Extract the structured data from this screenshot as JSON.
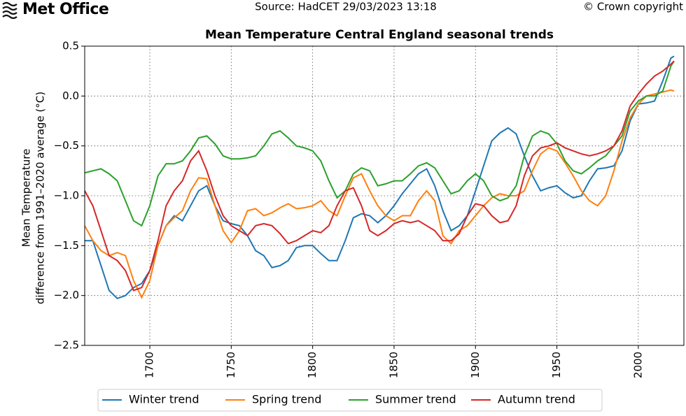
{
  "header": {
    "logo": "Met Office",
    "source": "Source: HadCET 29/03/2023 13:18",
    "copyright": "© Crown copyright"
  },
  "chart_data": {
    "type": "line",
    "title": "Mean Temperature Central England seasonal trends",
    "ylabel": [
      "Mean Temperature",
      "difference from 1991–2020 average (°C)"
    ],
    "x": [
      1660,
      1665,
      1670,
      1675,
      1680,
      1685,
      1690,
      1695,
      1700,
      1705,
      1710,
      1715,
      1720,
      1725,
      1730,
      1735,
      1740,
      1745,
      1750,
      1755,
      1760,
      1765,
      1770,
      1775,
      1780,
      1785,
      1790,
      1795,
      1800,
      1805,
      1810,
      1815,
      1820,
      1825,
      1830,
      1835,
      1840,
      1845,
      1850,
      1855,
      1860,
      1865,
      1870,
      1875,
      1880,
      1885,
      1890,
      1895,
      1900,
      1905,
      1910,
      1915,
      1920,
      1925,
      1930,
      1935,
      1940,
      1945,
      1950,
      1955,
      1960,
      1965,
      1970,
      1975,
      1980,
      1985,
      1990,
      1995,
      2000,
      2005,
      2010,
      2015,
      2020,
      2022
    ],
    "series": [
      {
        "name": "Winter trend",
        "color": "#1f77b4",
        "values": [
          -1.45,
          -1.45,
          -1.7,
          -1.95,
          -2.03,
          -2.0,
          -1.92,
          -1.88,
          -1.75,
          -1.5,
          -1.3,
          -1.2,
          -1.25,
          -1.1,
          -0.95,
          -0.9,
          -1.1,
          -1.25,
          -1.28,
          -1.3,
          -1.4,
          -1.55,
          -1.6,
          -1.72,
          -1.7,
          -1.65,
          -1.52,
          -1.5,
          -1.5,
          -1.58,
          -1.65,
          -1.65,
          -1.45,
          -1.22,
          -1.18,
          -1.2,
          -1.27,
          -1.2,
          -1.1,
          -0.98,
          -0.88,
          -0.78,
          -0.73,
          -0.9,
          -1.15,
          -1.35,
          -1.3,
          -1.2,
          -0.95,
          -0.7,
          -0.45,
          -0.37,
          -0.32,
          -0.38,
          -0.6,
          -0.8,
          -0.95,
          -0.92,
          -0.9,
          -0.97,
          -1.02,
          -1.0,
          -0.85,
          -0.73,
          -0.72,
          -0.7,
          -0.55,
          -0.25,
          -0.08,
          -0.07,
          -0.05,
          0.15,
          0.38,
          0.4
        ]
      },
      {
        "name": "Spring trend",
        "color": "#ff7f0e",
        "values": [
          -1.3,
          -1.45,
          -1.55,
          -1.6,
          -1.57,
          -1.6,
          -1.85,
          -2.02,
          -1.85,
          -1.5,
          -1.3,
          -1.22,
          -1.15,
          -0.95,
          -0.82,
          -0.83,
          -1.1,
          -1.35,
          -1.47,
          -1.35,
          -1.15,
          -1.13,
          -1.2,
          -1.17,
          -1.12,
          -1.08,
          -1.13,
          -1.12,
          -1.1,
          -1.05,
          -1.15,
          -1.2,
          -1.0,
          -0.82,
          -0.78,
          -0.95,
          -1.1,
          -1.2,
          -1.25,
          -1.2,
          -1.2,
          -1.05,
          -0.95,
          -1.05,
          -1.4,
          -1.48,
          -1.35,
          -1.3,
          -1.2,
          -1.1,
          -1.02,
          -0.98,
          -1.0,
          -1.0,
          -0.95,
          -0.75,
          -0.58,
          -0.52,
          -0.55,
          -0.67,
          -0.8,
          -0.95,
          -1.05,
          -1.1,
          -1.0,
          -0.75,
          -0.45,
          -0.22,
          -0.08,
          0.0,
          0.02,
          0.04,
          0.06,
          0.05
        ]
      },
      {
        "name": "Summer trend",
        "color": "#2ca02c",
        "values": [
          -0.77,
          -0.75,
          -0.73,
          -0.78,
          -0.85,
          -1.05,
          -1.25,
          -1.3,
          -1.1,
          -0.8,
          -0.68,
          -0.68,
          -0.65,
          -0.55,
          -0.42,
          -0.4,
          -0.48,
          -0.6,
          -0.63,
          -0.63,
          -0.62,
          -0.6,
          -0.5,
          -0.38,
          -0.35,
          -0.42,
          -0.5,
          -0.52,
          -0.55,
          -0.65,
          -0.85,
          -1.02,
          -0.95,
          -0.78,
          -0.72,
          -0.75,
          -0.9,
          -0.88,
          -0.85,
          -0.85,
          -0.78,
          -0.7,
          -0.67,
          -0.72,
          -0.85,
          -0.98,
          -0.95,
          -0.85,
          -0.78,
          -0.85,
          -1.0,
          -1.05,
          -1.02,
          -0.9,
          -0.6,
          -0.4,
          -0.35,
          -0.38,
          -0.48,
          -0.65,
          -0.75,
          -0.78,
          -0.72,
          -0.65,
          -0.6,
          -0.5,
          -0.4,
          -0.15,
          -0.05,
          0.0,
          0.0,
          0.05,
          0.3,
          0.35
        ]
      },
      {
        "name": "Autumn trend",
        "color": "#d62728",
        "values": [
          -0.95,
          -1.1,
          -1.35,
          -1.6,
          -1.65,
          -1.75,
          -1.95,
          -1.92,
          -1.75,
          -1.45,
          -1.1,
          -0.95,
          -0.85,
          -0.65,
          -0.55,
          -0.75,
          -1.0,
          -1.2,
          -1.3,
          -1.35,
          -1.4,
          -1.3,
          -1.28,
          -1.3,
          -1.38,
          -1.48,
          -1.45,
          -1.4,
          -1.35,
          -1.37,
          -1.3,
          -1.1,
          -0.95,
          -0.92,
          -1.1,
          -1.35,
          -1.4,
          -1.35,
          -1.28,
          -1.25,
          -1.27,
          -1.25,
          -1.3,
          -1.35,
          -1.45,
          -1.45,
          -1.38,
          -1.2,
          -1.08,
          -1.1,
          -1.2,
          -1.27,
          -1.25,
          -1.1,
          -0.8,
          -0.6,
          -0.52,
          -0.5,
          -0.47,
          -0.52,
          -0.55,
          -0.58,
          -0.6,
          -0.58,
          -0.55,
          -0.5,
          -0.35,
          -0.1,
          0.02,
          0.12,
          0.2,
          0.25,
          0.32,
          0.35
        ]
      }
    ],
    "xlim": [
      1660,
      2028
    ],
    "ylim": [
      -2.5,
      0.5
    ],
    "xticks": [
      1700,
      1750,
      1800,
      1850,
      1900,
      1950,
      2000
    ],
    "yticks": [
      0.5,
      {
        "value": 0.0,
        "label": "0.0"
      },
      {
        "value": -0.5,
        "label": "−0.5"
      },
      {
        "value": -1.0,
        "label": "−1.0"
      },
      {
        "value": -1.5,
        "label": "−1.5"
      },
      {
        "value": -2.0,
        "label": "−2.0"
      },
      {
        "value": -2.5,
        "label": "−2.5"
      }
    ],
    "grid": true
  }
}
